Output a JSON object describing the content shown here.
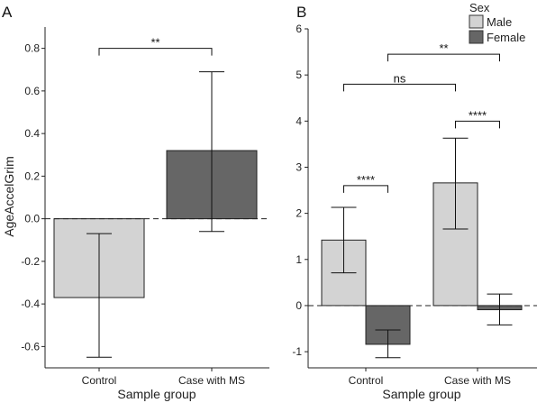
{
  "chart_data": [
    {
      "panel": "A",
      "type": "bar",
      "title": "",
      "xlabel": "Sample group",
      "ylabel": "AgeAccelGrim",
      "categories": [
        "Control",
        "Case with MS"
      ],
      "values": [
        -0.37,
        0.32
      ],
      "error_low": [
        -0.65,
        -0.06
      ],
      "error_high": [
        -0.07,
        0.69
      ],
      "colors": [
        "#d3d3d3",
        "#666666"
      ],
      "ylim": [
        -0.7,
        0.9
      ],
      "yticks": [
        -0.6,
        -0.4,
        -0.2,
        0.0,
        0.2,
        0.4,
        0.6,
        0.8
      ],
      "ytick_labels": [
        "-0.6",
        "-0.4",
        "-0.2",
        "0.0",
        "0.2",
        "0.4",
        "0.6",
        "0.8"
      ],
      "reference_line": 0,
      "annotations": [
        {
          "label": "**",
          "from": "Control",
          "to": "Case with MS",
          "y": 0.8
        }
      ]
    },
    {
      "panel": "B",
      "type": "bar",
      "title": "",
      "xlabel": "Sample group",
      "ylabel": "",
      "categories": [
        "Control",
        "Case with MS"
      ],
      "legend_title": "Sex",
      "legend_position": "top-right",
      "series": [
        {
          "name": "Male",
          "color": "#d3d3d3",
          "values": [
            1.42,
            2.66
          ],
          "error_low": [
            0.71,
            1.66
          ],
          "error_high": [
            2.13,
            3.63
          ]
        },
        {
          "name": "Female",
          "color": "#666666",
          "values": [
            -0.84,
            -0.09
          ],
          "error_low": [
            -1.13,
            -0.42
          ],
          "error_high": [
            -0.53,
            0.25
          ]
        }
      ],
      "ylim": [
        -1.35,
        6.0
      ],
      "yticks": [
        -1,
        0,
        1,
        2,
        3,
        4,
        5,
        6
      ],
      "ytick_labels": [
        "-1",
        "0",
        "1",
        "2",
        "3",
        "4",
        "5",
        "6"
      ],
      "reference_line": 0,
      "annotations": [
        {
          "label": "****",
          "group": "Control",
          "from_series": "Male",
          "to_series": "Female",
          "y": 2.6
        },
        {
          "label": "****",
          "group": "Case with MS",
          "from_series": "Male",
          "to_series": "Female",
          "y": 4.0
        },
        {
          "label": "ns",
          "from_group": "Control",
          "from_series": "Male",
          "to_group": "Case with MS",
          "to_series": "Male",
          "y": 4.8
        },
        {
          "label": "**",
          "from_group": "Control",
          "from_series": "Female",
          "to_group": "Case with MS",
          "to_series": "Female",
          "y": 5.45
        }
      ]
    }
  ]
}
